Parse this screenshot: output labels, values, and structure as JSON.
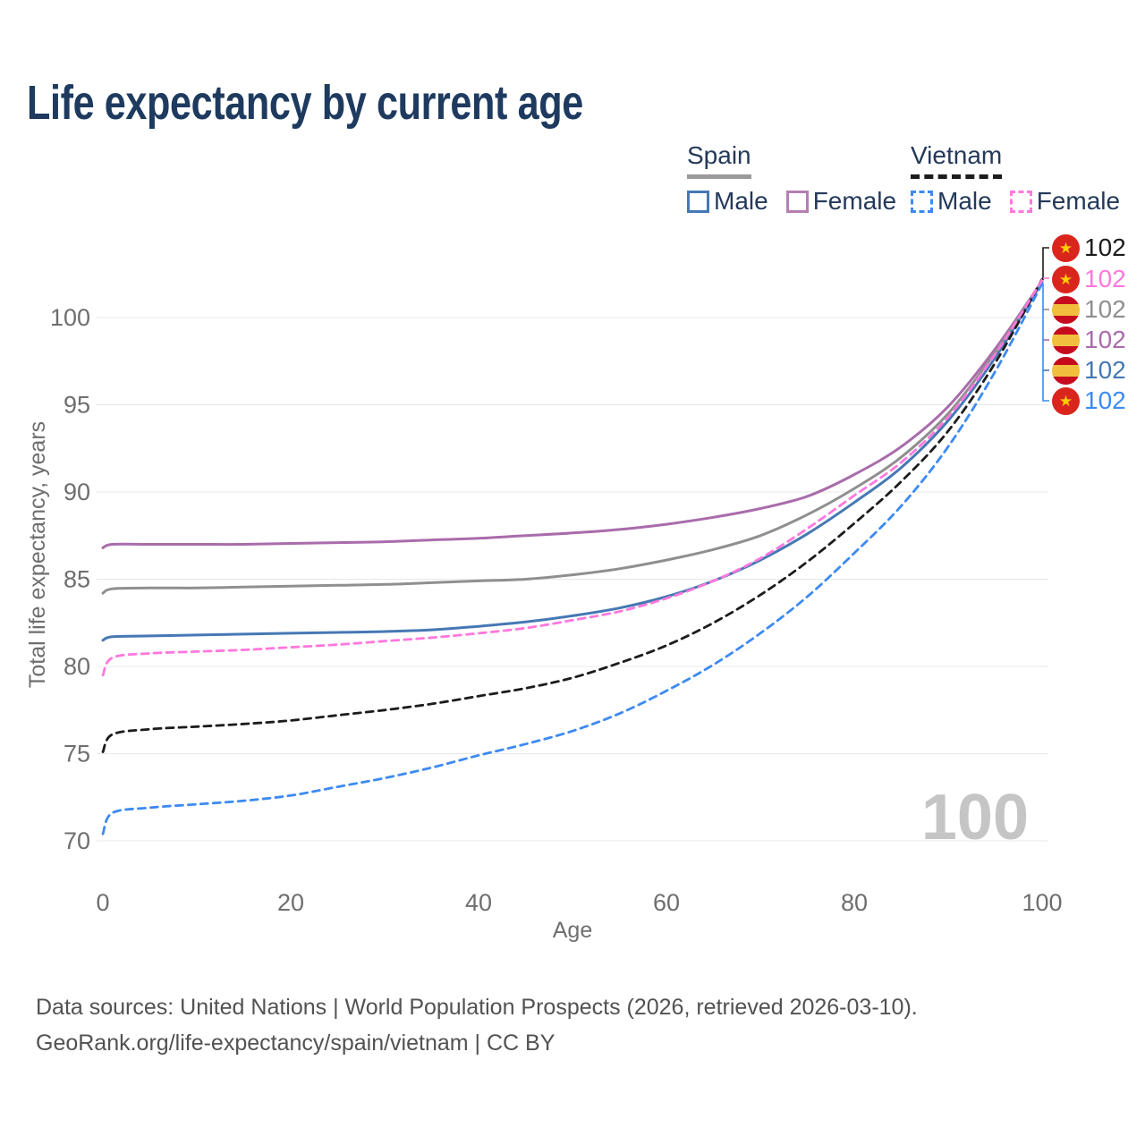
{
  "title": "Life expectancy by current age",
  "watermark": "100",
  "icons": {
    "star": "★"
  },
  "palette": {
    "title_text": "#1e3a5f",
    "grid": "#e8e8e8",
    "tick_text": "#6e6e6e",
    "axis_title_text": "#6e6e6e",
    "watermark_text": "#c5c5c5",
    "vietnam_flag_red": "#da251d",
    "vietnam_flag_star": "#ffcd00",
    "spain_flag_red": "#c60b1e",
    "spain_flag_yellow": "#f1bf3d"
  },
  "legend": {
    "groups": [
      {
        "label": "Spain",
        "underline": {
          "style": "solid",
          "color": "#9a9a9a"
        },
        "items": [
          {
            "label": "Male",
            "color": "#4678b4",
            "dash": "solid"
          },
          {
            "label": "Female",
            "color": "#b57fb0",
            "dash": "solid"
          }
        ]
      },
      {
        "label": "Vietnam",
        "underline": {
          "style": "dashed",
          "color": "#1c1c1c"
        },
        "items": [
          {
            "label": "Male",
            "color": "#3d8af2",
            "dash": "dashed"
          },
          {
            "label": "Female",
            "color": "#ff78dd",
            "dash": "dashed"
          }
        ]
      }
    ]
  },
  "chart_data": {
    "type": "line",
    "title": "Life expectancy by current age",
    "xlabel": "Age",
    "ylabel": "Total life expectancy, years",
    "x_ticks": [
      0,
      20,
      40,
      60,
      80,
      100
    ],
    "y_ticks": [
      70,
      75,
      80,
      85,
      90,
      95,
      100
    ],
    "xlim": [
      0,
      100
    ],
    "ylim": [
      69.5,
      103
    ],
    "grid": true,
    "legend_position": "top-right",
    "x": [
      0,
      1,
      5,
      10,
      15,
      20,
      25,
      30,
      35,
      40,
      45,
      50,
      55,
      60,
      65,
      70,
      75,
      80,
      85,
      90,
      95,
      100
    ],
    "series": [
      {
        "id": "spain-female",
        "name": "Spain Female",
        "color": "#a96cab",
        "dash": "solid",
        "values": [
          86.8,
          87.0,
          87.0,
          87.0,
          87.0,
          87.05,
          87.1,
          87.15,
          87.25,
          87.35,
          87.5,
          87.65,
          87.85,
          88.15,
          88.55,
          89.05,
          89.75,
          91.0,
          92.6,
          94.9,
          98.2,
          102.1
        ]
      },
      {
        "id": "spain",
        "name": "Spain",
        "color": "#8f8f8f",
        "dash": "solid",
        "values": [
          84.2,
          84.45,
          84.5,
          84.5,
          84.55,
          84.6,
          84.65,
          84.7,
          84.8,
          84.9,
          85.0,
          85.25,
          85.6,
          86.1,
          86.7,
          87.5,
          88.7,
          90.2,
          92.0,
          94.5,
          98.0,
          102.1
        ]
      },
      {
        "id": "spain-male",
        "name": "Spain Male",
        "color": "#4678b4",
        "dash": "solid",
        "values": [
          81.5,
          81.7,
          81.75,
          81.8,
          81.85,
          81.9,
          81.95,
          82.0,
          82.1,
          82.3,
          82.55,
          82.9,
          83.35,
          84.0,
          84.9,
          86.1,
          87.6,
          89.4,
          91.4,
          94.1,
          97.7,
          102.05
        ]
      },
      {
        "id": "vietnam-male",
        "name": "Vietnam Male",
        "color": "#3d8af2",
        "dash": "dashed",
        "values": [
          70.4,
          71.6,
          71.9,
          72.1,
          72.3,
          72.6,
          73.1,
          73.6,
          74.2,
          74.9,
          75.55,
          76.3,
          77.3,
          78.6,
          80.1,
          81.9,
          84.0,
          86.5,
          89.2,
          92.6,
          96.9,
          101.95
        ]
      },
      {
        "id": "vietnam",
        "name": "Vietnam",
        "color": "#1c1c1c",
        "dash": "dashed",
        "values": [
          75.1,
          76.1,
          76.4,
          76.55,
          76.7,
          76.9,
          77.2,
          77.5,
          77.85,
          78.3,
          78.75,
          79.35,
          80.2,
          81.2,
          82.5,
          84.1,
          86.0,
          88.2,
          90.6,
          93.5,
          97.4,
          102.2
        ]
      },
      {
        "id": "vietnam-female",
        "name": "Vietnam Female",
        "color": "#ff78dd",
        "dash": "dashed",
        "values": [
          79.5,
          80.5,
          80.75,
          80.85,
          80.95,
          81.1,
          81.25,
          81.45,
          81.65,
          81.9,
          82.2,
          82.65,
          83.15,
          83.9,
          84.9,
          86.2,
          87.9,
          89.8,
          91.7,
          94.3,
          97.9,
          102.15
        ]
      }
    ]
  },
  "end_labels": [
    {
      "value": "102",
      "flag": "vietnam",
      "color": "#1c1c1c",
      "series": "Vietnam"
    },
    {
      "value": "102",
      "flag": "vietnam",
      "color": "#ff78dd",
      "series": "Vietnam Female"
    },
    {
      "value": "102",
      "flag": "spain",
      "color": "#8f8f8f",
      "series": "Spain"
    },
    {
      "value": "102",
      "flag": "spain",
      "color": "#a96cab",
      "series": "Spain Female"
    },
    {
      "value": "102",
      "flag": "spain",
      "color": "#4678b4",
      "series": "Spain Male"
    },
    {
      "value": "102",
      "flag": "vietnam",
      "color": "#3d8af2",
      "series": "Vietnam Male"
    }
  ],
  "footer": {
    "line1": "Data sources: United Nations | World Population Prospects (2026, retrieved 2026-03-10).",
    "line2": "GeoRank.org/life-expectancy/spain/vietnam | CC BY"
  }
}
